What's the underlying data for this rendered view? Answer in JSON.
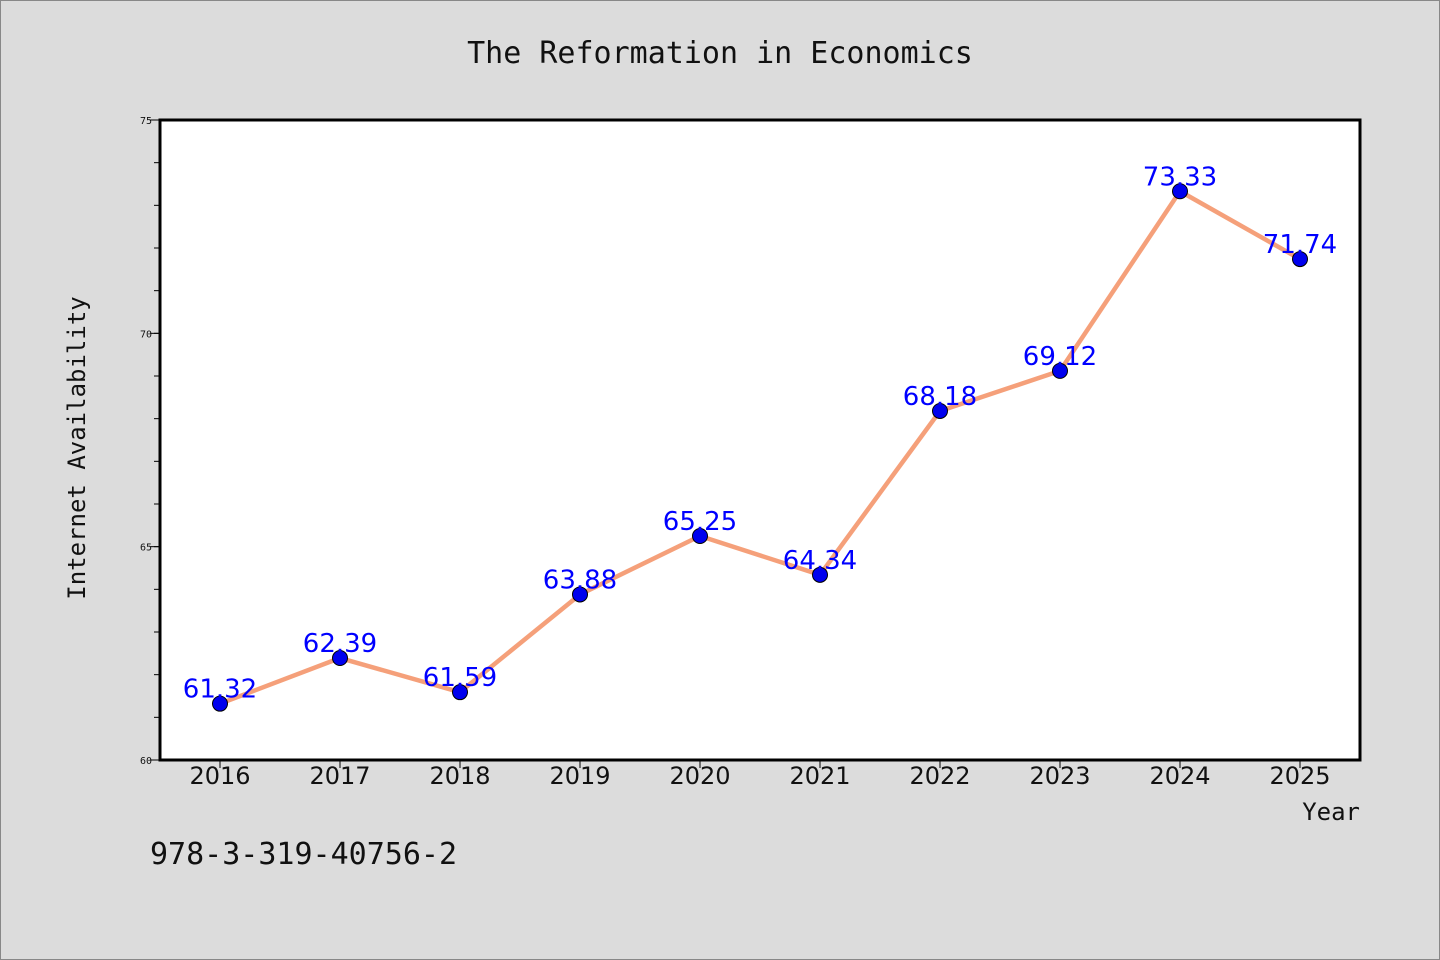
{
  "chart_data": {
    "type": "line",
    "title": "The Reformation in Economics",
    "xlabel": "Year",
    "ylabel": "Internet Availability",
    "categories": [
      "2016",
      "2017",
      "2018",
      "2019",
      "2020",
      "2021",
      "2022",
      "2023",
      "2024",
      "2025"
    ],
    "series": [
      {
        "values": [
          61.32,
          62.39,
          61.59,
          63.88,
          65.25,
          64.34,
          68.18,
          69.12,
          73.33,
          71.74
        ],
        "data_labels": [
          "61.32",
          "62.39",
          "61.59",
          "63.88",
          "65.25",
          "64.34",
          "68.18",
          "69.12",
          "73.33",
          "71.74"
        ]
      }
    ],
    "ylim": [
      60,
      75
    ],
    "yticks": [
      "60",
      "65",
      "70",
      "75"
    ],
    "y_minor_step": 1,
    "grid": false,
    "legend": "none",
    "colors": {
      "line": "#f5a07a",
      "marker": "#0000ee",
      "label": "#0000ff",
      "background": "#dcdcdc",
      "plot_background": "#ffffff"
    }
  },
  "footer": {
    "identifier": "978-3-319-40756-2"
  }
}
